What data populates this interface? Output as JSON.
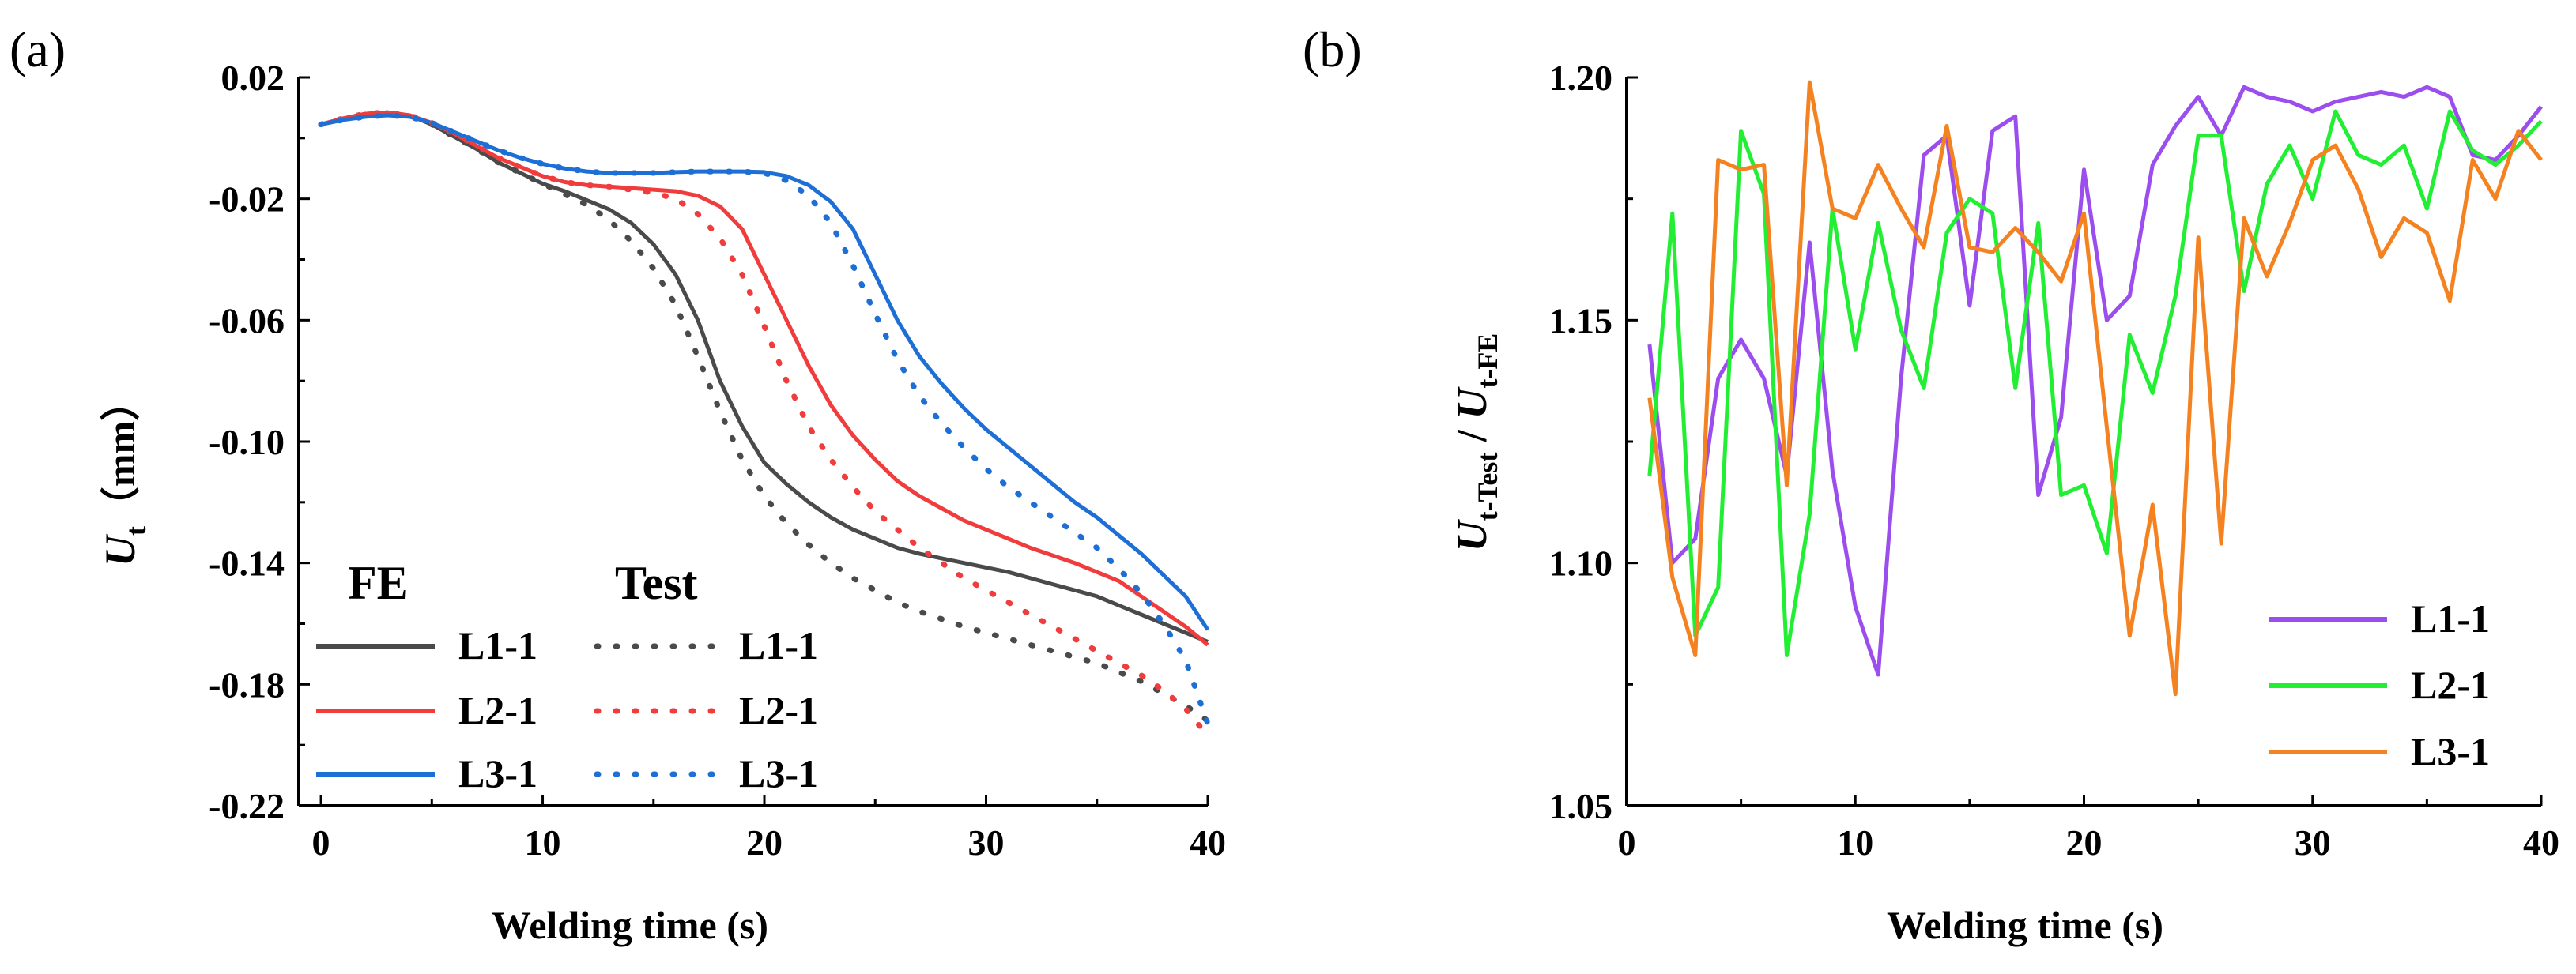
{
  "chart_data": [
    {
      "panel": "(a)",
      "type": "line",
      "xlabel": "Welding time (s)",
      "ylabel": {
        "main": "U",
        "sub": "t",
        "unit": "（mm）"
      },
      "xlim": [
        -1,
        40
      ],
      "ylim": [
        -0.22,
        0.02
      ],
      "xticks": [
        0,
        10,
        20,
        30,
        40
      ],
      "yticks": [
        0.02,
        -0.02,
        -0.06,
        -0.1,
        -0.14,
        -0.18,
        -0.22
      ],
      "ytick_labels": [
        "0.02",
        "-0.02",
        "-0.06",
        "-0.10",
        "-0.14",
        "-0.18",
        "-0.22"
      ],
      "legend": {
        "fe_title": "FE",
        "test_title": "Test",
        "labels": [
          "L1-1",
          "L2-1",
          "L3-1"
        ]
      },
      "series": [
        {
          "name": "L1-1",
          "group": "FE",
          "style": "solid",
          "color": "#4a4a4a",
          "x": [
            0,
            1,
            2,
            3,
            4,
            5,
            6,
            7,
            8,
            9,
            10,
            11,
            12,
            13,
            14,
            15,
            16,
            17,
            18,
            19,
            20,
            21,
            22,
            23,
            24,
            25,
            26,
            27,
            28,
            29,
            30,
            31,
            32,
            33,
            34,
            35,
            36,
            37,
            38,
            39,
            40
          ],
          "y": [
            0.0045,
            0.0065,
            0.008,
            0.0085,
            0.0075,
            0.0045,
            0.0005,
            -0.0035,
            -0.008,
            -0.0115,
            -0.015,
            -0.0175,
            -0.0205,
            -0.0235,
            -0.028,
            -0.035,
            -0.045,
            -0.06,
            -0.08,
            -0.095,
            -0.107,
            -0.114,
            -0.12,
            -0.125,
            -0.129,
            -0.132,
            -0.135,
            -0.137,
            -0.1385,
            -0.14,
            -0.1415,
            -0.143,
            -0.145,
            -0.147,
            -0.149,
            -0.151,
            -0.154,
            -0.157,
            -0.16,
            -0.163,
            -0.166
          ]
        },
        {
          "name": "L2-1",
          "group": "FE",
          "style": "solid",
          "color": "#f03c3c",
          "x": [
            0,
            1,
            2,
            3,
            4,
            5,
            6,
            7,
            8,
            9,
            10,
            11,
            12,
            13,
            14,
            15,
            16,
            17,
            18,
            19,
            20,
            21,
            22,
            23,
            24,
            25,
            26,
            27,
            28,
            29,
            30,
            31,
            32,
            33,
            34,
            35,
            36,
            37,
            38,
            39,
            40
          ],
          "y": [
            0.0045,
            0.0065,
            0.008,
            0.0085,
            0.0075,
            0.005,
            0.0015,
            -0.0025,
            -0.0065,
            -0.0095,
            -0.0125,
            -0.0145,
            -0.0155,
            -0.016,
            -0.0165,
            -0.017,
            -0.0175,
            -0.019,
            -0.0225,
            -0.03,
            -0.045,
            -0.06,
            -0.075,
            -0.088,
            -0.098,
            -0.106,
            -0.113,
            -0.118,
            -0.122,
            -0.126,
            -0.129,
            -0.132,
            -0.135,
            -0.1375,
            -0.14,
            -0.143,
            -0.146,
            -0.151,
            -0.156,
            -0.161,
            -0.167
          ]
        },
        {
          "name": "L3-1",
          "group": "FE",
          "style": "solid",
          "color": "#1d6fd6",
          "x": [
            0,
            1,
            2,
            3,
            4,
            5,
            6,
            7,
            8,
            9,
            10,
            11,
            12,
            13,
            14,
            15,
            16,
            17,
            18,
            19,
            20,
            21,
            22,
            23,
            24,
            25,
            26,
            27,
            28,
            29,
            30,
            31,
            32,
            33,
            34,
            35,
            36,
            37,
            38,
            39,
            40
          ],
          "y": [
            0.0045,
            0.006,
            0.007,
            0.0075,
            0.007,
            0.005,
            0.002,
            -0.001,
            -0.004,
            -0.0065,
            -0.0085,
            -0.01,
            -0.011,
            -0.0115,
            -0.0115,
            -0.0115,
            -0.0112,
            -0.011,
            -0.011,
            -0.011,
            -0.0112,
            -0.0125,
            -0.0155,
            -0.021,
            -0.03,
            -0.045,
            -0.06,
            -0.072,
            -0.081,
            -0.089,
            -0.096,
            -0.102,
            -0.108,
            -0.114,
            -0.12,
            -0.125,
            -0.131,
            -0.137,
            -0.144,
            -0.151,
            -0.162
          ]
        },
        {
          "name": "L1-1",
          "group": "Test",
          "style": "dotted",
          "color": "#4a4a4a",
          "x": [
            0,
            1,
            2,
            3,
            4,
            5,
            6,
            7,
            8,
            9,
            10,
            11,
            12,
            13,
            14,
            15,
            16,
            17,
            18,
            19,
            20,
            21,
            22,
            23,
            24,
            25,
            26,
            27,
            28,
            29,
            30,
            31,
            32,
            33,
            34,
            35,
            36,
            37,
            38,
            39,
            40
          ],
          "y": [
            0.0045,
            0.0065,
            0.008,
            0.0085,
            0.0075,
            0.0045,
            0.0005,
            -0.0035,
            -0.008,
            -0.0115,
            -0.015,
            -0.0185,
            -0.022,
            -0.027,
            -0.034,
            -0.043,
            -0.055,
            -0.072,
            -0.09,
            -0.106,
            -0.118,
            -0.127,
            -0.134,
            -0.14,
            -0.145,
            -0.149,
            -0.153,
            -0.156,
            -0.1585,
            -0.161,
            -0.163,
            -0.165,
            -0.167,
            -0.169,
            -0.171,
            -0.173,
            -0.176,
            -0.179,
            -0.183,
            -0.187,
            -0.192
          ]
        },
        {
          "name": "L2-1",
          "group": "Test",
          "style": "dotted",
          "color": "#f03c3c",
          "x": [
            0,
            1,
            2,
            3,
            4,
            5,
            6,
            7,
            8,
            9,
            10,
            11,
            12,
            13,
            14,
            15,
            16,
            17,
            18,
            19,
            20,
            21,
            22,
            23,
            24,
            25,
            26,
            27,
            28,
            29,
            30,
            31,
            32,
            33,
            34,
            35,
            36,
            37,
            38,
            39,
            40
          ],
          "y": [
            0.0045,
            0.0065,
            0.008,
            0.0085,
            0.0075,
            0.005,
            0.0015,
            -0.0025,
            -0.0065,
            -0.0095,
            -0.0125,
            -0.0145,
            -0.0155,
            -0.016,
            -0.017,
            -0.018,
            -0.02,
            -0.025,
            -0.033,
            -0.045,
            -0.062,
            -0.08,
            -0.095,
            -0.106,
            -0.115,
            -0.123,
            -0.129,
            -0.135,
            -0.14,
            -0.145,
            -0.149,
            -0.153,
            -0.157,
            -0.161,
            -0.165,
            -0.169,
            -0.173,
            -0.177,
            -0.182,
            -0.188,
            -0.197
          ]
        },
        {
          "name": "L3-1",
          "group": "Test",
          "style": "dotted",
          "color": "#1d6fd6",
          "x": [
            0,
            1,
            2,
            3,
            4,
            5,
            6,
            7,
            8,
            9,
            10,
            11,
            12,
            13,
            14,
            15,
            16,
            17,
            18,
            19,
            20,
            21,
            22,
            23,
            24,
            25,
            26,
            27,
            28,
            29,
            30,
            31,
            32,
            33,
            34,
            35,
            36,
            37,
            38,
            39,
            40
          ],
          "y": [
            0.0045,
            0.006,
            0.007,
            0.0075,
            0.007,
            0.005,
            0.002,
            -0.001,
            -0.004,
            -0.0065,
            -0.0085,
            -0.01,
            -0.011,
            -0.0115,
            -0.0115,
            -0.0115,
            -0.0112,
            -0.011,
            -0.011,
            -0.011,
            -0.0115,
            -0.014,
            -0.019,
            -0.028,
            -0.042,
            -0.058,
            -0.073,
            -0.085,
            -0.094,
            -0.102,
            -0.109,
            -0.115,
            -0.12,
            -0.125,
            -0.13,
            -0.135,
            -0.142,
            -0.15,
            -0.16,
            -0.172,
            -0.193
          ]
        }
      ]
    },
    {
      "panel": "(b)",
      "type": "line",
      "xlabel": "Welding time (s)",
      "ylabel": {
        "a": "U",
        "a_sub": "t-Test",
        "sep": " / ",
        "b": "U",
        "b_sub": "t-FE"
      },
      "xlim": [
        0,
        40
      ],
      "ylim": [
        1.05,
        1.2
      ],
      "xticks": [
        0,
        10,
        20,
        30,
        40
      ],
      "yticks": [
        1.05,
        1.1,
        1.15,
        1.2
      ],
      "ytick_labels": [
        "1.05",
        "1.10",
        "1.15",
        "1.20"
      ],
      "legend": {
        "labels": [
          "L1-1",
          "L2-1",
          "L3-1"
        ]
      },
      "series": [
        {
          "name": "L1-1",
          "color": "#9b4ded",
          "x": [
            1,
            2,
            3,
            4,
            5,
            6,
            7,
            8,
            9,
            10,
            11,
            12,
            13,
            14,
            15,
            16,
            17,
            18,
            19,
            20,
            21,
            22,
            23,
            24,
            25,
            26,
            27,
            28,
            29,
            30,
            31,
            32,
            33,
            34,
            35,
            36,
            37,
            38,
            39,
            40
          ],
          "y": [
            1.145,
            1.1,
            1.105,
            1.138,
            1.146,
            1.138,
            1.118,
            1.166,
            1.119,
            1.091,
            1.077,
            1.138,
            1.184,
            1.188,
            1.153,
            1.189,
            1.192,
            1.114,
            1.13,
            1.181,
            1.15,
            1.155,
            1.182,
            1.19,
            1.196,
            1.188,
            1.198,
            1.196,
            1.195,
            1.193,
            1.195,
            1.196,
            1.197,
            1.196,
            1.198,
            1.196,
            1.184,
            1.183,
            1.188,
            1.194
          ]
        },
        {
          "name": "L2-1",
          "color": "#22ee33",
          "x": [
            1,
            2,
            3,
            4,
            5,
            6,
            7,
            8,
            9,
            10,
            11,
            12,
            13,
            14,
            15,
            16,
            17,
            18,
            19,
            20,
            21,
            22,
            23,
            24,
            25,
            26,
            27,
            28,
            29,
            30,
            31,
            32,
            33,
            34,
            35,
            36,
            37,
            38,
            39,
            40
          ],
          "y": [
            1.118,
            1.172,
            1.085,
            1.095,
            1.189,
            1.176,
            1.081,
            1.11,
            1.173,
            1.144,
            1.17,
            1.148,
            1.136,
            1.168,
            1.175,
            1.172,
            1.136,
            1.17,
            1.114,
            1.116,
            1.102,
            1.147,
            1.135,
            1.155,
            1.188,
            1.188,
            1.156,
            1.178,
            1.186,
            1.175,
            1.193,
            1.184,
            1.182,
            1.186,
            1.173,
            1.193,
            1.185,
            1.182,
            1.186,
            1.191
          ]
        },
        {
          "name": "L3-1",
          "color": "#f58220",
          "x": [
            1,
            2,
            3,
            4,
            5,
            6,
            7,
            8,
            9,
            10,
            11,
            12,
            13,
            14,
            15,
            16,
            17,
            18,
            19,
            20,
            21,
            22,
            23,
            24,
            25,
            26,
            27,
            28,
            29,
            30,
            31,
            32,
            33,
            34,
            35,
            36,
            37,
            38,
            39,
            40
          ],
          "y": [
            1.134,
            1.097,
            1.081,
            1.183,
            1.181,
            1.182,
            1.116,
            1.199,
            1.173,
            1.171,
            1.182,
            1.173,
            1.165,
            1.19,
            1.165,
            1.164,
            1.169,
            1.164,
            1.158,
            1.172,
            1.128,
            1.085,
            1.112,
            1.073,
            1.167,
            1.104,
            1.171,
            1.159,
            1.17,
            1.183,
            1.186,
            1.177,
            1.163,
            1.171,
            1.168,
            1.154,
            1.183,
            1.175,
            1.189,
            1.183
          ]
        }
      ]
    }
  ]
}
